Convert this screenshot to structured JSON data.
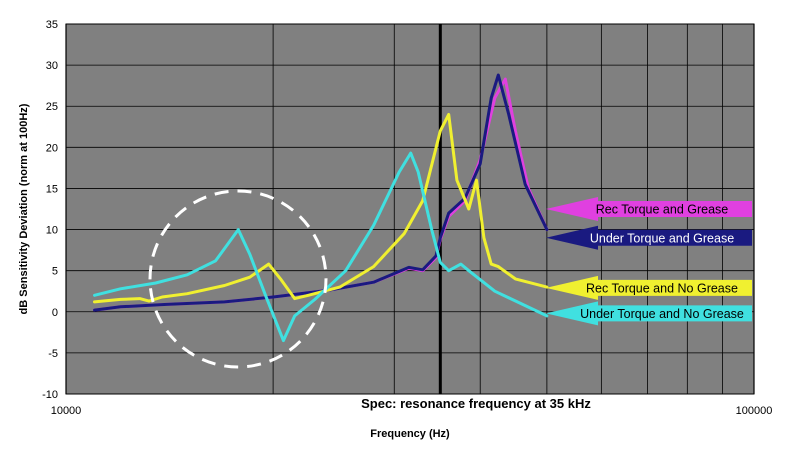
{
  "chart_data": {
    "type": "line",
    "xlabel": "Frequency (Hz)",
    "ylabel": "dB Sensitivity Deviation (norm at 100Hz)",
    "xscale": "log",
    "xlim": [
      10000,
      100000
    ],
    "ylim": [
      -10,
      35
    ],
    "x_tick_labels": [
      "10000",
      "100000"
    ],
    "y_ticks": [
      -10,
      -5,
      0,
      5,
      10,
      15,
      20,
      25,
      30,
      35
    ],
    "grid": true,
    "plot_background": "#808080",
    "annotations": {
      "spec_label": "Spec: resonance frequency at 35 kHz",
      "spec_frequency": 35000
    },
    "series": [
      {
        "name": "Rec Torque and Grease",
        "color": "#e040e0",
        "points": [
          [
            11000,
            0.2
          ],
          [
            12000,
            0.6
          ],
          [
            14000,
            0.9
          ],
          [
            17000,
            1.2
          ],
          [
            20000,
            1.8
          ],
          [
            24000,
            2.6
          ],
          [
            28000,
            3.6
          ],
          [
            31500,
            5.3
          ],
          [
            33000,
            5.0
          ],
          [
            34500,
            6.6
          ],
          [
            35000,
            8.8
          ],
          [
            36000,
            11.6
          ],
          [
            38000,
            13.5
          ],
          [
            40000,
            18.5
          ],
          [
            42000,
            26.0
          ],
          [
            43500,
            28.3
          ],
          [
            45000,
            22.0
          ],
          [
            47000,
            15.0
          ],
          [
            50000,
            10.0
          ]
        ]
      },
      {
        "name": "Under Torque and Grease",
        "color": "#1a1a80",
        "points": [
          [
            11000,
            0.2
          ],
          [
            12000,
            0.6
          ],
          [
            14000,
            0.9
          ],
          [
            17000,
            1.2
          ],
          [
            20000,
            1.8
          ],
          [
            24000,
            2.6
          ],
          [
            28000,
            3.6
          ],
          [
            31500,
            5.4
          ],
          [
            33000,
            5.1
          ],
          [
            34500,
            6.8
          ],
          [
            35000,
            9.0
          ],
          [
            36000,
            12.0
          ],
          [
            38000,
            13.8
          ],
          [
            40000,
            18.0
          ],
          [
            41500,
            26.0
          ],
          [
            42500,
            28.8
          ],
          [
            44000,
            24.0
          ],
          [
            46500,
            15.5
          ],
          [
            50000,
            10.0
          ]
        ]
      },
      {
        "name": "Rec Torque and No Grease",
        "color": "#f0f030",
        "points": [
          [
            11000,
            1.2
          ],
          [
            12000,
            1.5
          ],
          [
            12800,
            1.6
          ],
          [
            13200,
            1.3
          ],
          [
            13800,
            1.8
          ],
          [
            15000,
            2.2
          ],
          [
            17000,
            3.2
          ],
          [
            18500,
            4.2
          ],
          [
            19700,
            5.8
          ],
          [
            20500,
            4.0
          ],
          [
            21500,
            1.6
          ],
          [
            22500,
            2.0
          ],
          [
            25000,
            3.0
          ],
          [
            28000,
            5.5
          ],
          [
            31000,
            9.5
          ],
          [
            33000,
            13.5
          ],
          [
            35000,
            22.0
          ],
          [
            36000,
            24.0
          ],
          [
            37000,
            16.0
          ],
          [
            38500,
            12.5
          ],
          [
            39500,
            16.0
          ],
          [
            40500,
            9.0
          ],
          [
            41500,
            5.8
          ],
          [
            42500,
            5.5
          ],
          [
            45000,
            4.0
          ],
          [
            50000,
            3.0
          ]
        ]
      },
      {
        "name": "Under Torque and No Grease",
        "color": "#40e0e0",
        "points": [
          [
            11000,
            2.0
          ],
          [
            12000,
            2.8
          ],
          [
            13500,
            3.5
          ],
          [
            15000,
            4.5
          ],
          [
            16500,
            6.2
          ],
          [
            17800,
            10.0
          ],
          [
            18500,
            7.0
          ],
          [
            19500,
            2.0
          ],
          [
            20700,
            -3.5
          ],
          [
            21500,
            -0.5
          ],
          [
            23000,
            1.5
          ],
          [
            25500,
            5.0
          ],
          [
            28000,
            10.5
          ],
          [
            30500,
            17.0
          ],
          [
            31700,
            19.3
          ],
          [
            32500,
            17.0
          ],
          [
            34000,
            10.0
          ],
          [
            35000,
            6.0
          ],
          [
            36000,
            5.0
          ],
          [
            37500,
            5.8
          ],
          [
            38500,
            5.0
          ],
          [
            42000,
            2.5
          ],
          [
            50000,
            -0.5
          ]
        ]
      }
    ],
    "callout_labels": [
      {
        "label": "Rec Torque and Grease",
        "y": 12.5,
        "fill": "#e040e0",
        "text_color": "#000000"
      },
      {
        "label": "Under Torque and Grease",
        "y": 9.0,
        "fill": "#1a1a80",
        "text_color": "#ffffff"
      },
      {
        "label": "Rec Torque and No Grease",
        "y": 2.9,
        "fill": "#f0f030",
        "text_color": "#000000"
      },
      {
        "label": "Under Torque and No Grease",
        "y": -0.2,
        "fill": "#40e0e0",
        "text_color": "#000000"
      }
    ]
  }
}
